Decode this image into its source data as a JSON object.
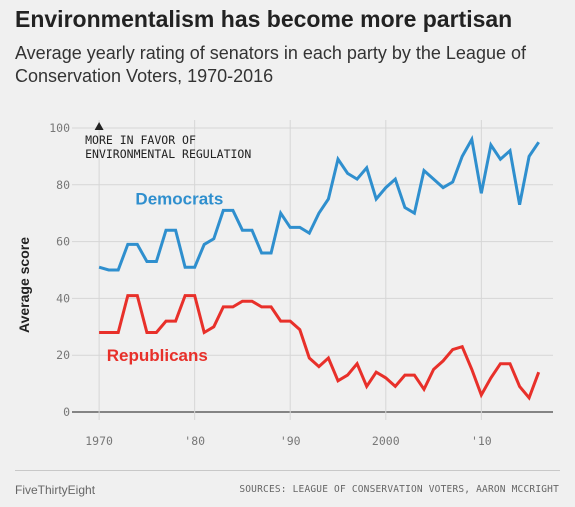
{
  "header": {
    "title": "Environmentalism has become more partisan",
    "subtitle": "Average yearly rating of senators in each party by the League of Conservation Voters, 1970-2016"
  },
  "footer": {
    "brand": "FiveThirtyEight",
    "sources": "SOURCES: LEAGUE OF CONSERVATION VOTERS, AARON MCCRIGHT"
  },
  "chart_data": {
    "type": "line",
    "ylabel": "Average score",
    "xlim": [
      1968,
      2017.5
    ],
    "ylim": [
      0,
      100
    ],
    "x_ticks": [
      1970,
      1980,
      1990,
      2000,
      2010
    ],
    "x_tick_labels": [
      "1970",
      "'80",
      "'90",
      "2000",
      "'10"
    ],
    "y_ticks": [
      0,
      20,
      40,
      60,
      80,
      100
    ],
    "y_tick_labels": [
      "0",
      "20",
      "40",
      "60",
      "80",
      "100"
    ],
    "grid": true,
    "annotation": {
      "line1": "MORE IN FAVOR OF",
      "line2": "ENVIRONMENTAL REGULATION",
      "arrow_x": 1970,
      "arrow_y": 100
    },
    "x": [
      1970,
      1971,
      1972,
      1973,
      1974,
      1975,
      1976,
      1977,
      1978,
      1979,
      1980,
      1981,
      1982,
      1983,
      1984,
      1985,
      1986,
      1987,
      1988,
      1989,
      1990,
      1991,
      1992,
      1993,
      1994,
      1995,
      1996,
      1997,
      1998,
      1999,
      2000,
      2001,
      2002,
      2003,
      2004,
      2005,
      2006,
      2007,
      2008,
      2009,
      2010,
      2011,
      2012,
      2013,
      2014,
      2015,
      2016
    ],
    "series": [
      {
        "name": "Democrats",
        "color": "#2f8fce",
        "label_x": 1973.8,
        "label_y": 73,
        "values": [
          51,
          50,
          50,
          59,
          59,
          53,
          53,
          64,
          64,
          51,
          51,
          59,
          61,
          71,
          71,
          64,
          64,
          56,
          56,
          70,
          65,
          65,
          63,
          70,
          75,
          89,
          84,
          82,
          86,
          75,
          79,
          82,
          72,
          70,
          85,
          82,
          79,
          81,
          90,
          96,
          77,
          94,
          89,
          92,
          73,
          90,
          95
        ]
      },
      {
        "name": "Republicans",
        "color": "#e8302a",
        "label_x": 1970.8,
        "label_y": 18,
        "values": [
          28,
          28,
          28,
          41,
          41,
          28,
          28,
          32,
          32,
          41,
          41,
          28,
          30,
          37,
          37,
          39,
          39,
          37,
          37,
          32,
          32,
          29,
          19,
          16,
          19,
          11,
          13,
          17,
          9,
          14,
          12,
          9,
          13,
          13,
          8,
          15,
          18,
          22,
          23,
          15,
          6,
          12,
          17,
          17,
          9,
          5,
          14
        ]
      }
    ]
  }
}
